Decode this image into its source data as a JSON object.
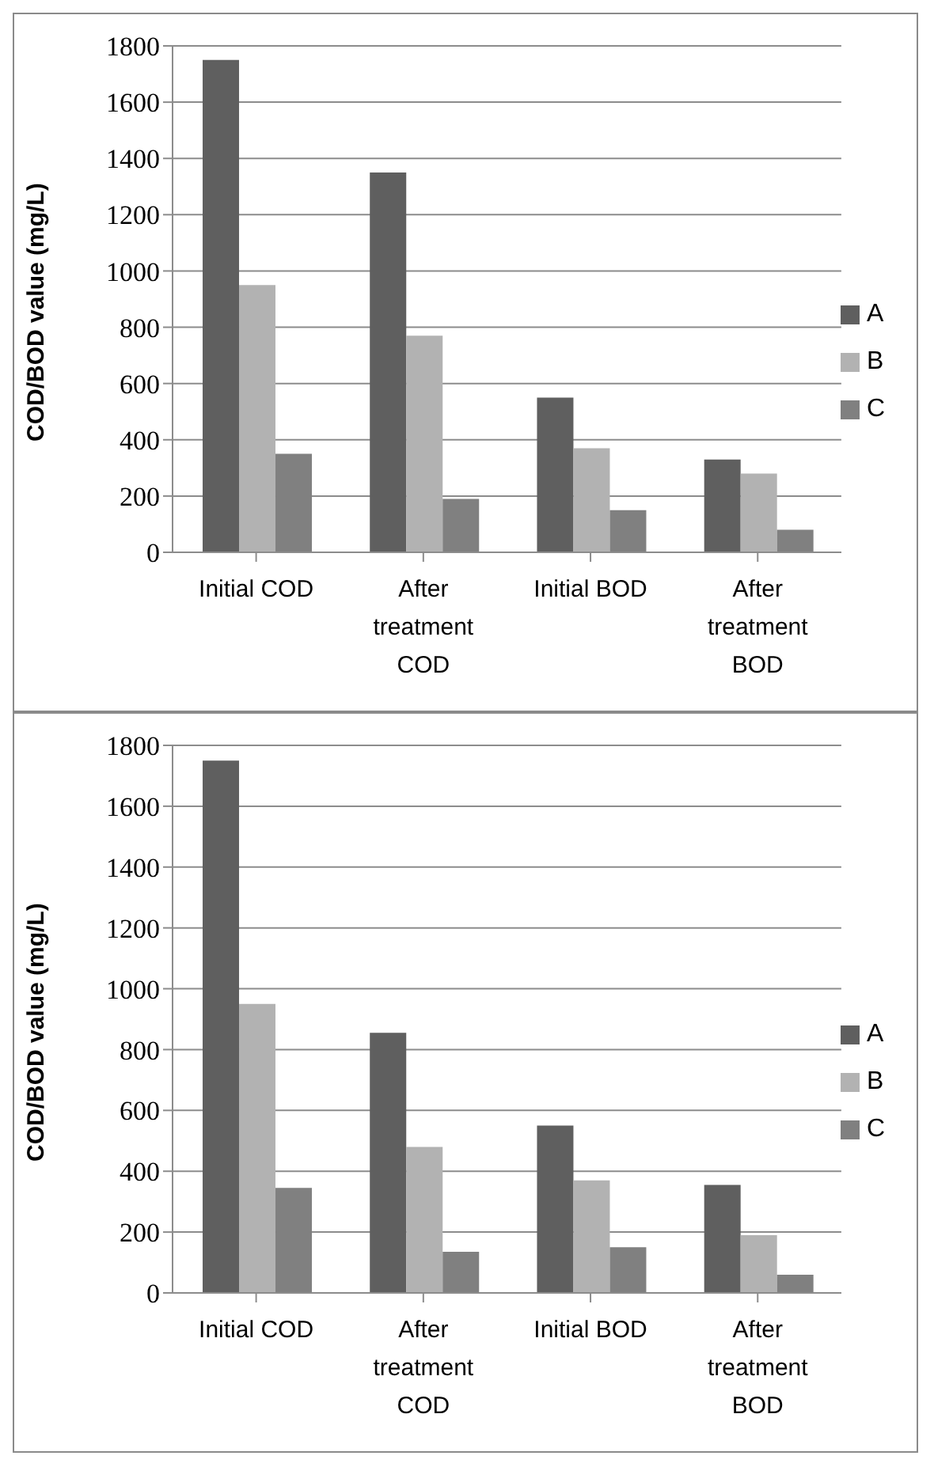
{
  "chart_data": [
    {
      "type": "bar",
      "ylabel": "COD/BOD value (mg/L)",
      "categories": [
        "Initial COD",
        "After treatment COD",
        "Initial BOD",
        "After treatment BOD"
      ],
      "series": [
        {
          "name": "A",
          "color": "#5f5f5f",
          "values": [
            1750,
            1350,
            550,
            330
          ]
        },
        {
          "name": "B",
          "color": "#b2b2b2",
          "values": [
            950,
            770,
            370,
            280
          ]
        },
        {
          "name": "C",
          "color": "#808080",
          "values": [
            350,
            190,
            150,
            80
          ]
        }
      ],
      "ylim": [
        0,
        1800
      ],
      "yticks": [
        0,
        200,
        400,
        600,
        800,
        1000,
        1200,
        1400,
        1600,
        1800
      ],
      "grid": "y",
      "legend": "right"
    },
    {
      "type": "bar",
      "ylabel": "COD/BOD value (mg/L)",
      "categories": [
        "Initial COD",
        "After treatment COD",
        "Initial BOD",
        "After treatment BOD"
      ],
      "series": [
        {
          "name": "A",
          "color": "#5f5f5f",
          "values": [
            1750,
            855,
            550,
            355
          ]
        },
        {
          "name": "B",
          "color": "#b2b2b2",
          "values": [
            950,
            480,
            370,
            190
          ]
        },
        {
          "name": "C",
          "color": "#808080",
          "values": [
            345,
            135,
            150,
            60
          ]
        }
      ],
      "ylim": [
        0,
        1800
      ],
      "yticks": [
        0,
        200,
        400,
        600,
        800,
        1000,
        1200,
        1400,
        1600,
        1800
      ],
      "grid": "y",
      "legend": "right"
    }
  ]
}
